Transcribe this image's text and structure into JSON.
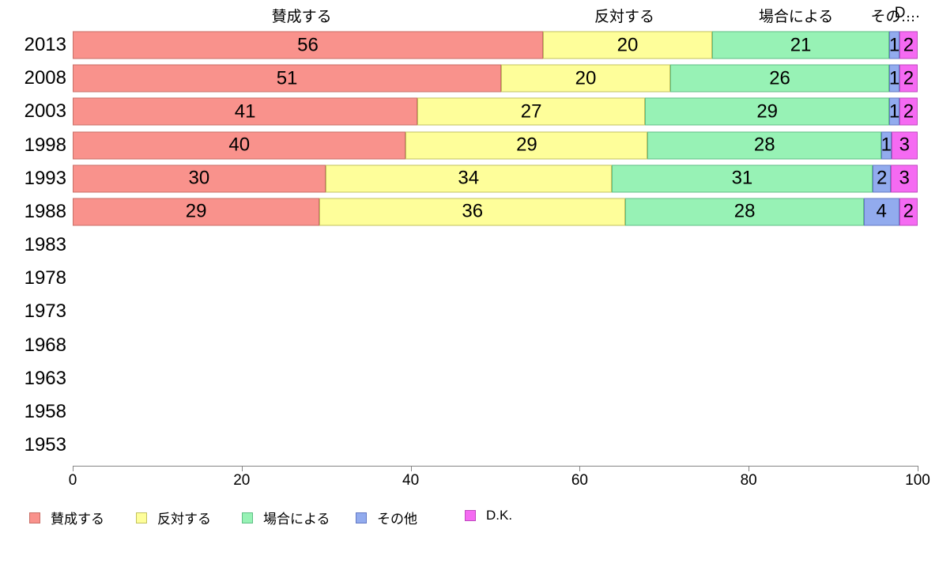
{
  "chart_data": {
    "type": "bar",
    "orientation": "horizontal",
    "stacked": true,
    "title": "",
    "xlabel": "",
    "ylabel": "",
    "xlim": [
      0,
      100
    ],
    "x_ticks": [
      0,
      20,
      40,
      60,
      80,
      100
    ],
    "grid": false,
    "legend_position": "bottom",
    "categories": [
      "2013",
      "2008",
      "2003",
      "1998",
      "1993",
      "1988",
      "1983",
      "1978",
      "1973",
      "1968",
      "1963",
      "1958",
      "1953"
    ],
    "series": [
      {
        "name": "賛成する",
        "color": "#F9928C",
        "border_color": "#C96E66",
        "values": [
          56,
          51,
          41,
          40,
          30,
          29,
          null,
          null,
          null,
          null,
          null,
          null,
          null
        ]
      },
      {
        "name": "反対する",
        "color": "#FEFE9A",
        "border_color": "#C2C25E",
        "values": [
          20,
          20,
          27,
          29,
          34,
          36,
          null,
          null,
          null,
          null,
          null,
          null,
          null
        ]
      },
      {
        "name": "場合による",
        "color": "#97F2B5",
        "border_color": "#5FBF85",
        "values": [
          21,
          26,
          29,
          28,
          31,
          28,
          null,
          null,
          null,
          null,
          null,
          null,
          null
        ]
      },
      {
        "name": "その他",
        "color": "#92ABEE",
        "border_color": "#6379C4",
        "values": [
          1,
          1,
          1,
          1,
          2,
          4,
          null,
          null,
          null,
          null,
          null,
          null,
          null
        ]
      },
      {
        "name": "D.K.",
        "color": "#F56AF2",
        "border_color": "#BF4ABF",
        "values": [
          2,
          2,
          2,
          3,
          3,
          2,
          null,
          null,
          null,
          null,
          null,
          null,
          null
        ]
      }
    ],
    "top_segment_labels": [
      {
        "text": "賛成する",
        "center_pct": 27.1
      },
      {
        "text": "反対する",
        "center_pct": 65.3
      },
      {
        "text": "場合による",
        "center_pct": 85.6
      },
      {
        "text": "その…",
        "center_pct": 97.1
      },
      {
        "text": "D…",
        "center_pct": 98.8
      }
    ],
    "legend_labels": [
      "賛成する",
      "反対する",
      "場合による",
      "その他",
      "D.K."
    ]
  }
}
